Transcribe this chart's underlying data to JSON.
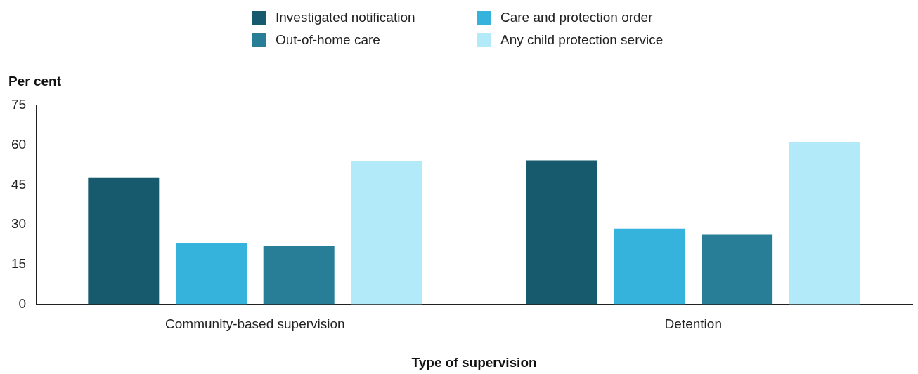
{
  "chart_data": {
    "type": "bar",
    "xlabel": "Type of supervision",
    "ylabel": "Per cent",
    "categories": [
      "Community-based supervision",
      "Detention"
    ],
    "series": [
      {
        "name": "Investigated notification",
        "color": "#175a6e",
        "values": [
          47.8,
          54.2
        ]
      },
      {
        "name": "Care and protection order",
        "color": "#35b3dc",
        "values": [
          23.1,
          28.5
        ]
      },
      {
        "name": "Out-of-home care",
        "color": "#297e97",
        "values": [
          21.8,
          26.2
        ]
      },
      {
        "name": "Any child protection service",
        "color": "#b3eafa",
        "values": [
          53.9,
          61.1
        ]
      }
    ],
    "ylim": [
      0,
      75
    ],
    "yticks": [
      0,
      15,
      30,
      45,
      60,
      75
    ],
    "grid": false,
    "legend": "top"
  }
}
